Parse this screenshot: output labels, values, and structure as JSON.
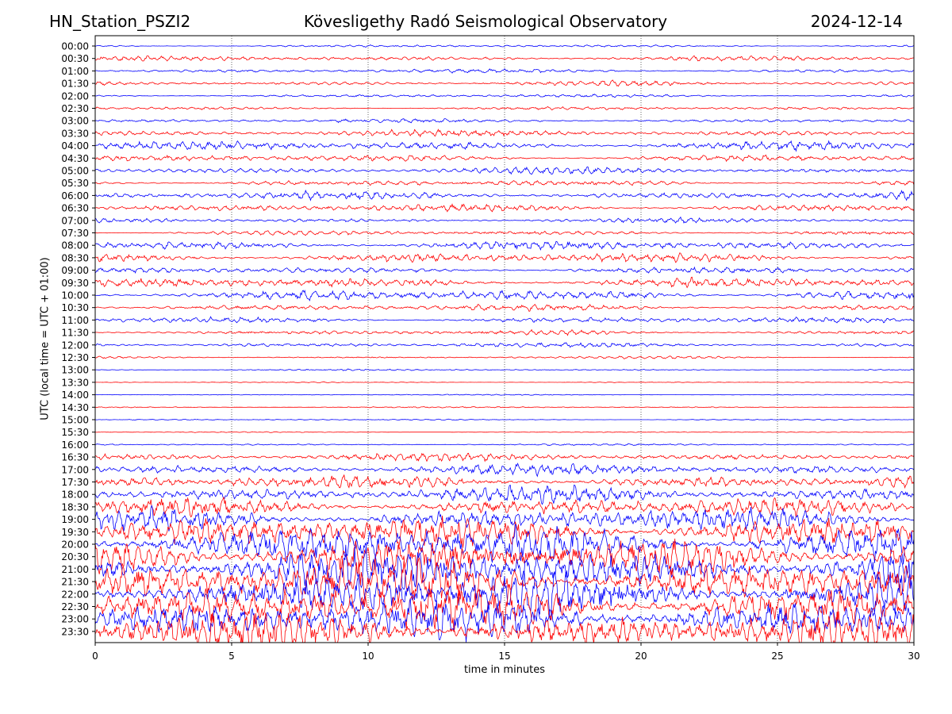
{
  "header": {
    "station": "HN_Station_PSZI2",
    "observatory": "Kövesligethy Radó Seismological Observatory",
    "date": "2024-12-14"
  },
  "chart_data": {
    "type": "line",
    "title": "Kövesligethy Radó Seismological Observatory",
    "xlabel": "time in minutes",
    "ylabel": "UTC (local time = UTC + 01:00)",
    "xlim": [
      0,
      30
    ],
    "x_ticks": [
      0,
      5,
      10,
      15,
      20,
      25,
      30
    ],
    "grid": "vertical dotted at x ticks",
    "series_colors": [
      "#0000ff",
      "#ff0000"
    ],
    "rows": [
      {
        "label": "00:00",
        "amplitude": 1.5
      },
      {
        "label": "00:30",
        "amplitude": 3.0
      },
      {
        "label": "01:00",
        "amplitude": 2.5
      },
      {
        "label": "01:30",
        "amplitude": 3.0
      },
      {
        "label": "02:00",
        "amplitude": 2.0
      },
      {
        "label": "02:30",
        "amplitude": 2.0
      },
      {
        "label": "03:00",
        "amplitude": 2.5
      },
      {
        "label": "03:30",
        "amplitude": 4.5
      },
      {
        "label": "04:00",
        "amplitude": 5.5
      },
      {
        "label": "04:30",
        "amplitude": 4.0
      },
      {
        "label": "05:00",
        "amplitude": 4.0
      },
      {
        "label": "05:30",
        "amplitude": 3.5
      },
      {
        "label": "06:00",
        "amplitude": 5.0
      },
      {
        "label": "06:30",
        "amplitude": 4.5
      },
      {
        "label": "07:00",
        "amplitude": 3.0
      },
      {
        "label": "07:30",
        "amplitude": 3.0
      },
      {
        "label": "08:00",
        "amplitude": 5.5
      },
      {
        "label": "08:30",
        "amplitude": 6.0
      },
      {
        "label": "09:00",
        "amplitude": 4.0
      },
      {
        "label": "09:30",
        "amplitude": 6.0
      },
      {
        "label": "10:00",
        "amplitude": 6.5
      },
      {
        "label": "10:30",
        "amplitude": 4.0
      },
      {
        "label": "11:00",
        "amplitude": 3.5
      },
      {
        "label": "11:30",
        "amplitude": 3.0
      },
      {
        "label": "12:00",
        "amplitude": 3.0
      },
      {
        "label": "12:30",
        "amplitude": 1.5
      },
      {
        "label": "13:00",
        "amplitude": 1.0
      },
      {
        "label": "13:30",
        "amplitude": 0.6
      },
      {
        "label": "14:00",
        "amplitude": 0.8
      },
      {
        "label": "14:30",
        "amplitude": 0.8
      },
      {
        "label": "15:00",
        "amplitude": 0.8
      },
      {
        "label": "15:30",
        "amplitude": 0.6
      },
      {
        "label": "16:00",
        "amplitude": 1.2
      },
      {
        "label": "16:30",
        "amplitude": 5.0
      },
      {
        "label": "17:00",
        "amplitude": 7.0
      },
      {
        "label": "17:30",
        "amplitude": 8.0
      },
      {
        "label": "18:00",
        "amplitude": 10.0
      },
      {
        "label": "18:30",
        "amplitude": 11.0
      },
      {
        "label": "19:00",
        "amplitude": 14.0
      },
      {
        "label": "19:30",
        "amplitude": 20.0
      },
      {
        "label": "20:00",
        "amplitude": 24.0
      },
      {
        "label": "20:30",
        "amplitude": 26.0
      },
      {
        "label": "21:00",
        "amplitude": 28.0
      },
      {
        "label": "21:30",
        "amplitude": 28.0
      },
      {
        "label": "22:00",
        "amplitude": 28.0
      },
      {
        "label": "22:30",
        "amplitude": 28.0
      },
      {
        "label": "23:00",
        "amplitude": 26.0
      },
      {
        "label": "23:30",
        "amplitude": 24.0
      }
    ]
  }
}
